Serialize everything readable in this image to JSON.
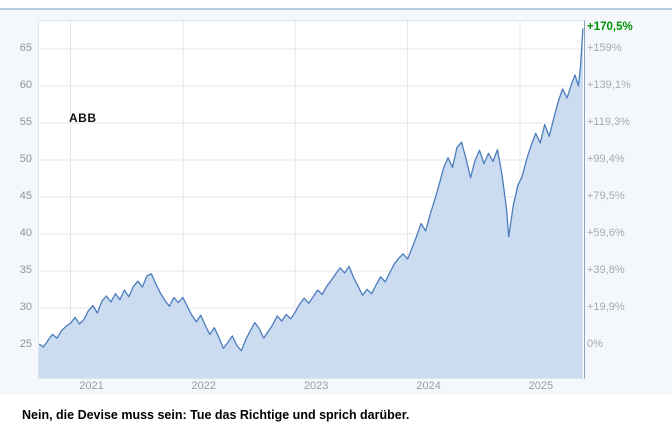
{
  "chart_data": {
    "type": "area",
    "title": "ABB",
    "xlabel": "",
    "ylabel": "",
    "grid": true,
    "legend": "none",
    "x_range": [
      2020.72,
      2025.57
    ],
    "y_range": [
      20.5,
      68.8
    ],
    "x_ticks": [
      {
        "value": 2021,
        "label": "2021"
      },
      {
        "value": 2022,
        "label": "2022"
      },
      {
        "value": 2023,
        "label": "2023"
      },
      {
        "value": 2024,
        "label": "2024"
      },
      {
        "value": 2025,
        "label": "2025"
      }
    ],
    "y_ticks": [
      {
        "value": 65,
        "left": "65",
        "right": "+159%"
      },
      {
        "value": 60,
        "left": "60",
        "right": "+139,1%"
      },
      {
        "value": 55,
        "left": "55",
        "right": "+119,3%"
      },
      {
        "value": 50,
        "left": "50",
        "right": "+99,4%"
      },
      {
        "value": 45,
        "left": "45",
        "right": "+79,5%"
      },
      {
        "value": 40,
        "left": "40",
        "right": "+59,6%"
      },
      {
        "value": 35,
        "left": "35",
        "right": "+39,8%"
      },
      {
        "value": 30,
        "left": "30",
        "right": "+19,9%"
      },
      {
        "value": 25,
        "left": "25",
        "right": "0%"
      }
    ],
    "current": {
      "value": 67.8,
      "label": "+170,5%",
      "color": "#009400"
    },
    "colors": {
      "line": "#4d7dbd",
      "fill": "#cbdcf1",
      "grid": "#e4e6ea"
    },
    "series": [
      {
        "name": "ABB",
        "x": [
          2020.72,
          2020.76,
          2020.8,
          2020.84,
          2020.88,
          2020.92,
          2020.96,
          2021.0,
          2021.04,
          2021.08,
          2021.12,
          2021.16,
          2021.2,
          2021.24,
          2021.28,
          2021.32,
          2021.36,
          2021.4,
          2021.44,
          2021.48,
          2021.52,
          2021.56,
          2021.6,
          2021.64,
          2021.68,
          2021.72,
          2021.76,
          2021.8,
          2021.84,
          2021.88,
          2021.92,
          2021.96,
          2022.0,
          2022.04,
          2022.08,
          2022.12,
          2022.16,
          2022.2,
          2022.24,
          2022.28,
          2022.32,
          2022.36,
          2022.4,
          2022.44,
          2022.48,
          2022.52,
          2022.56,
          2022.6,
          2022.64,
          2022.68,
          2022.72,
          2022.76,
          2022.8,
          2022.84,
          2022.88,
          2022.92,
          2022.96,
          2023.0,
          2023.04,
          2023.08,
          2023.12,
          2023.16,
          2023.2,
          2023.24,
          2023.28,
          2023.32,
          2023.36,
          2023.4,
          2023.44,
          2023.48,
          2023.52,
          2023.56,
          2023.6,
          2023.64,
          2023.68,
          2023.72,
          2023.76,
          2023.8,
          2023.84,
          2023.88,
          2023.92,
          2023.96,
          2024.0,
          2024.04,
          2024.08,
          2024.12,
          2024.16,
          2024.2,
          2024.24,
          2024.28,
          2024.32,
          2024.36,
          2024.4,
          2024.44,
          2024.48,
          2024.52,
          2024.56,
          2024.6,
          2024.64,
          2024.68,
          2024.72,
          2024.76,
          2024.8,
          2024.84,
          2024.88,
          2024.9,
          2024.94,
          2024.98,
          2025.02,
          2025.06,
          2025.1,
          2025.14,
          2025.18,
          2025.22,
          2025.26,
          2025.3,
          2025.34,
          2025.38,
          2025.42,
          2025.46,
          2025.49,
          2025.52,
          2025.54,
          2025.56
        ],
        "values": [
          25.1,
          24.7,
          25.6,
          26.4,
          25.9,
          26.9,
          27.5,
          27.9,
          28.7,
          27.8,
          28.4,
          29.6,
          30.3,
          29.3,
          30.9,
          31.6,
          30.8,
          31.9,
          31.1,
          32.4,
          31.5,
          32.9,
          33.6,
          32.8,
          34.3,
          34.6,
          33.2,
          32.0,
          31.0,
          30.2,
          31.4,
          30.7,
          31.4,
          30.2,
          29.0,
          28.1,
          29.0,
          27.6,
          26.4,
          27.3,
          26.0,
          24.5,
          25.3,
          26.2,
          24.9,
          24.2,
          25.7,
          26.9,
          28.0,
          27.2,
          25.9,
          26.8,
          27.7,
          28.9,
          28.2,
          29.1,
          28.5,
          29.4,
          30.5,
          31.3,
          30.6,
          31.5,
          32.4,
          31.8,
          32.9,
          33.7,
          34.6,
          35.4,
          34.7,
          35.6,
          34.1,
          32.9,
          31.7,
          32.5,
          31.9,
          33.1,
          34.2,
          33.5,
          34.7,
          35.9,
          36.7,
          37.3,
          36.6,
          38.1,
          39.7,
          41.4,
          40.4,
          42.6,
          44.5,
          46.6,
          48.9,
          50.3,
          49.0,
          51.7,
          52.4,
          50.2,
          47.6,
          49.9,
          51.3,
          49.5,
          50.9,
          49.8,
          51.4,
          48.0,
          43.4,
          39.6,
          43.8,
          46.5,
          47.8,
          50.1,
          52.0,
          53.6,
          52.3,
          54.8,
          53.2,
          55.6,
          57.9,
          59.6,
          58.4,
          60.3,
          61.5,
          60.0,
          62.8,
          67.8
        ]
      }
    ]
  },
  "footer": {
    "quote": "Nein, die Devise muss sein: Tue das Richtige und sprich darüber."
  }
}
